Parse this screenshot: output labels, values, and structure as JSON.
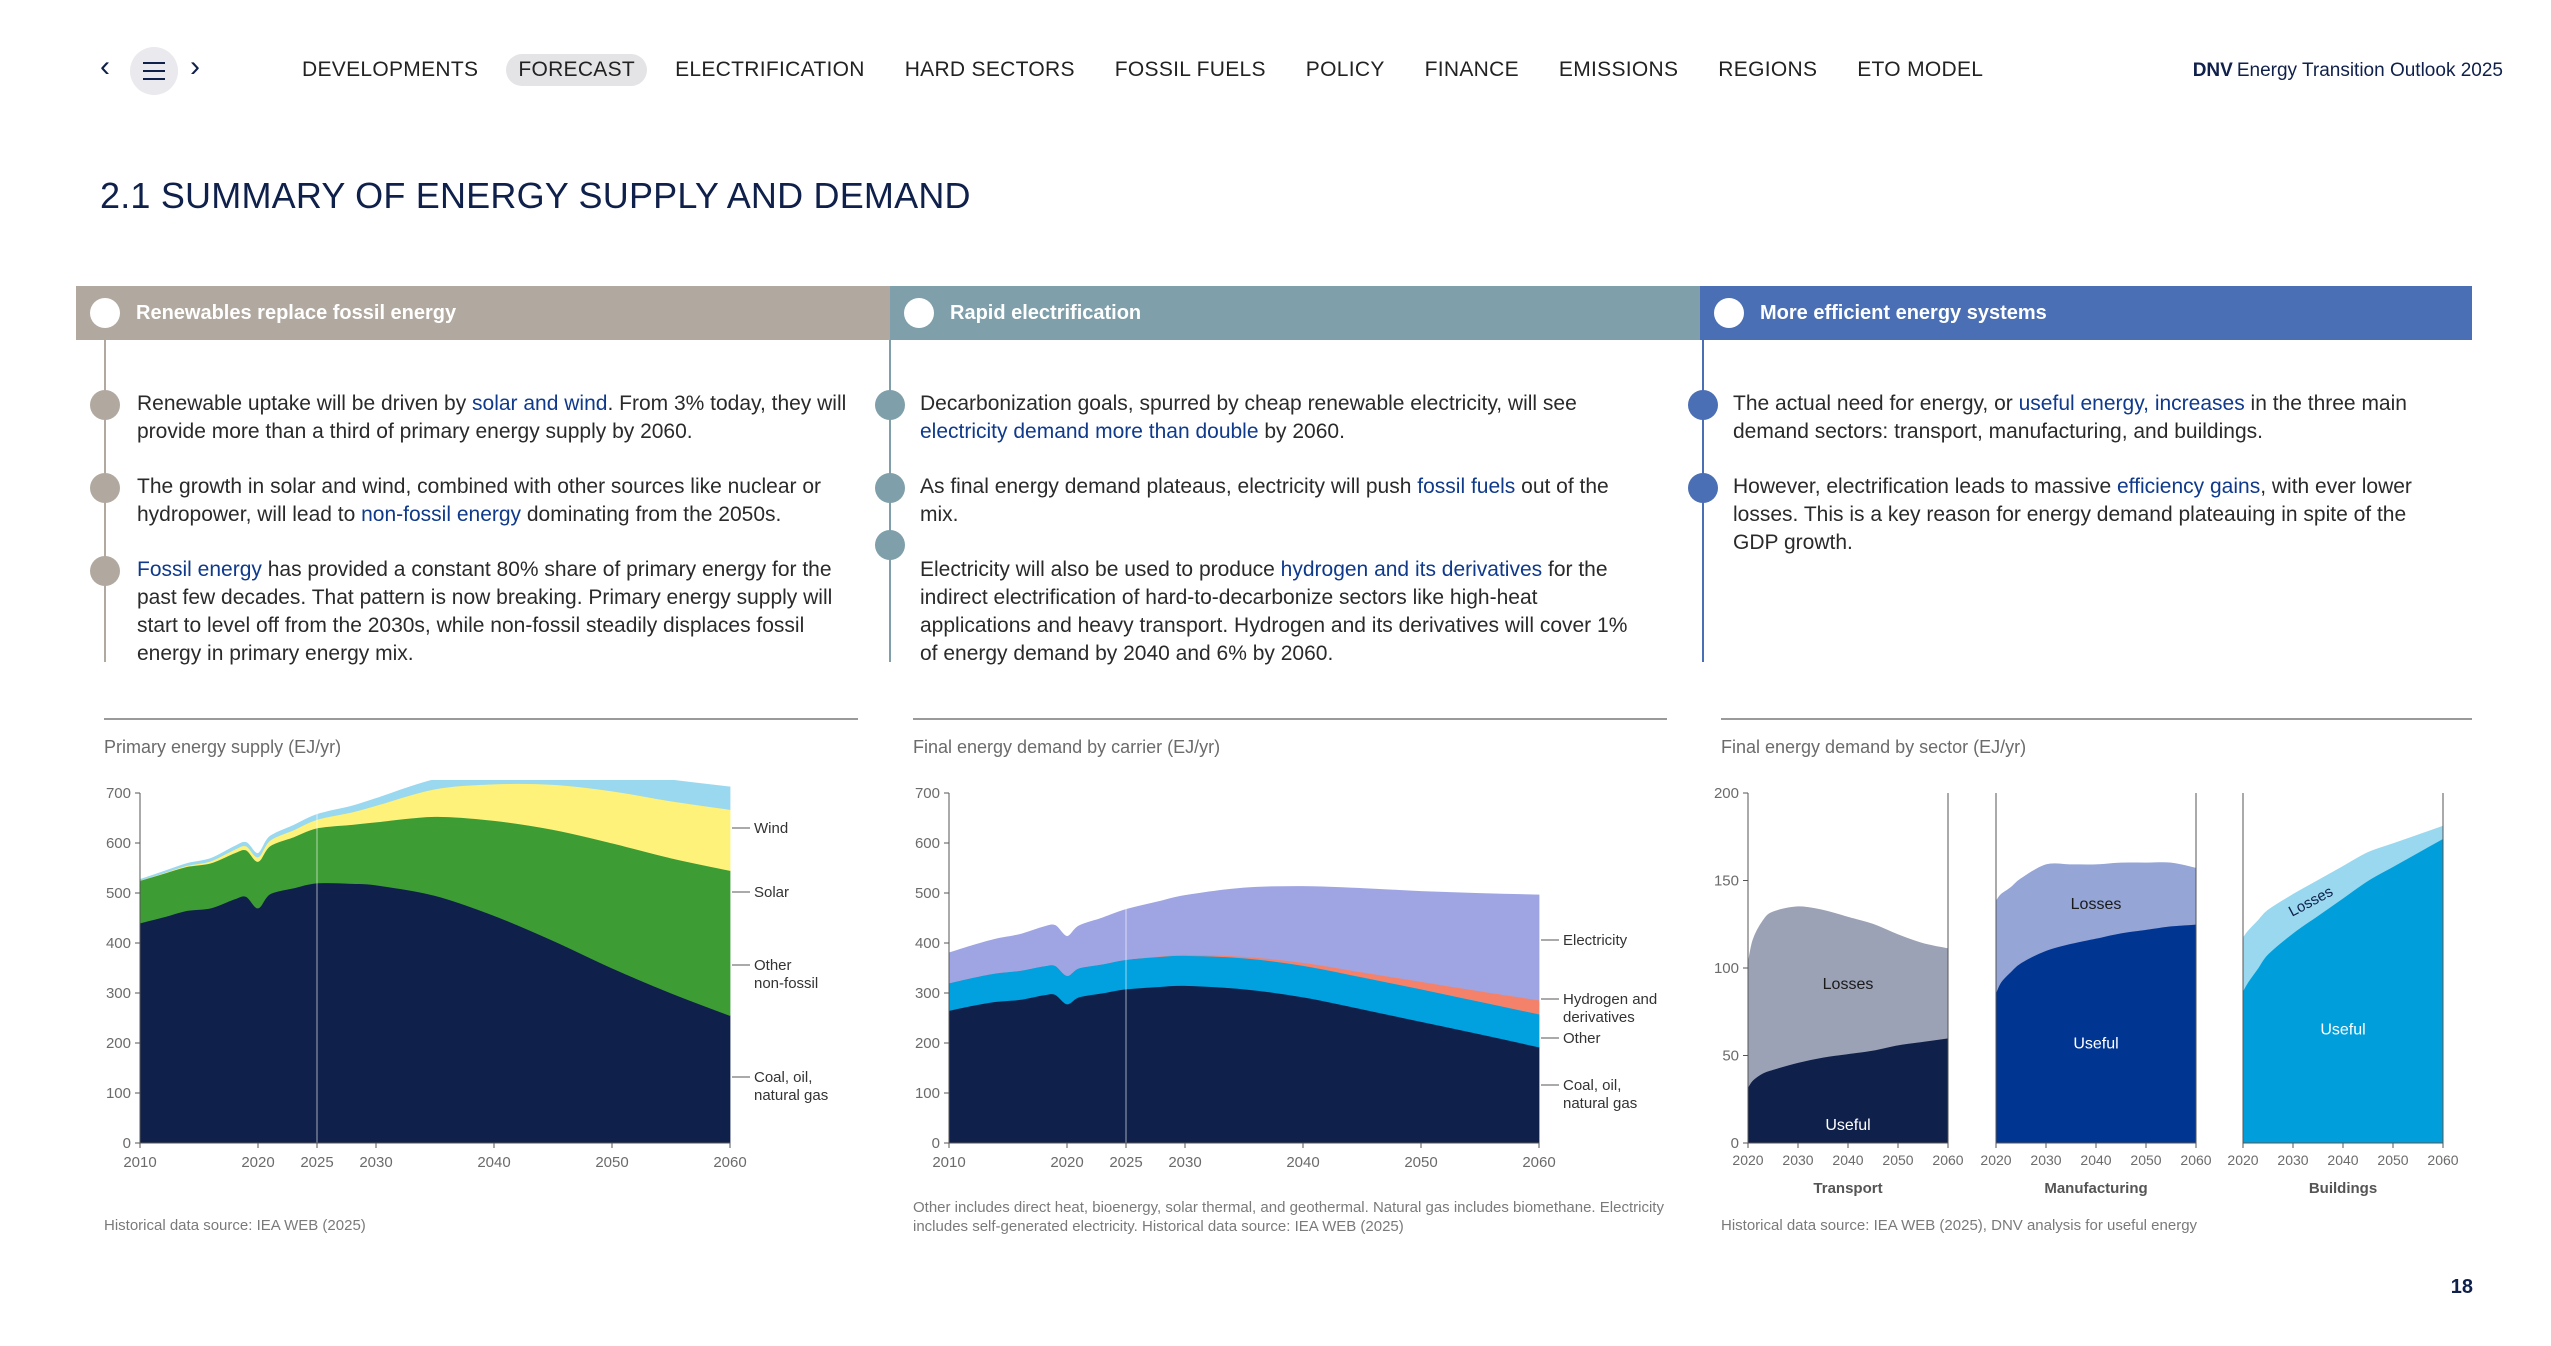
{
  "nav": {
    "prev_icon": "chevron-left-icon",
    "menu_icon": "hamburger-menu-icon",
    "next_icon": "chevron-right-icon",
    "tabs": [
      {
        "label": "DEVELOPMENTS",
        "active": false
      },
      {
        "label": "FORECAST",
        "active": true
      },
      {
        "label": "ELECTRIFICATION",
        "active": false
      },
      {
        "label": "HARD SECTORS",
        "active": false
      },
      {
        "label": "FOSSIL FUELS",
        "active": false
      },
      {
        "label": "POLICY",
        "active": false
      },
      {
        "label": "FINANCE",
        "active": false
      },
      {
        "label": "EMISSIONS",
        "active": false
      },
      {
        "label": "REGIONS",
        "active": false
      },
      {
        "label": "ETO MODEL",
        "active": false
      }
    ],
    "brand_bold": "DNV",
    "brand_text": "Energy Transition Outlook 2025"
  },
  "page_title": "2.1 SUMMARY OF ENERGY SUPPLY AND DEMAND",
  "sections": [
    {
      "heading": "Renewables replace fossil energy",
      "color": "#b1a99f",
      "paragraphs": [
        [
          {
            "t": "Renewable uptake will be driven by "
          },
          {
            "t": "solar and wind",
            "h": true
          },
          {
            "t": ". From 3% today, they will provide more than a third of primary energy supply by 2060."
          }
        ],
        [
          {
            "t": "The growth in solar and wind, combined with other sources like nuclear or hydropower, will lead to "
          },
          {
            "t": "non-fossil energy",
            "h": true
          },
          {
            "t": " dominating from the 2050s."
          }
        ],
        [
          {
            "t": "Fossil energy",
            "h": true
          },
          {
            "t": " has provided a constant 80% share of primary energy for the past few decades. That pattern is now breaking. Primary energy supply will start to level off from the 2030s, while non-fossil steadily displaces fossil energy in primary energy mix."
          }
        ]
      ]
    },
    {
      "heading": "Rapid electrification",
      "color": "#7f9faa",
      "paragraphs": [
        [
          {
            "t": "Decarbonization goals, spurred by cheap renewable electricity, will see "
          },
          {
            "t": "electricity demand more than double",
            "h": true
          },
          {
            "t": " by 2060."
          }
        ],
        [
          {
            "t": "As final energy demand plateaus, electricity will push "
          },
          {
            "t": "fossil fuels",
            "h": true
          },
          {
            "t": " out of the mix."
          }
        ],
        [
          {
            "t": "Electricity will also be used to produce "
          },
          {
            "t": "hydrogen and its derivatives",
            "h": true
          },
          {
            "t": " for the indirect electrification of hard-to-decarbonize sectors like high-heat applications and heavy transport. Hydrogen and its derivatives will cover 1% of energy demand by 2040 and 6% by 2060."
          }
        ]
      ]
    },
    {
      "heading": "More efficient energy systems",
      "color": "#4a6fb5",
      "paragraphs": [
        [
          {
            "t": "The actual need for energy, or "
          },
          {
            "t": "useful energy, increases",
            "h": true
          },
          {
            "t": " in the three main demand sectors: transport, manufacturing, and buildings."
          }
        ],
        [
          {
            "t": "However, electrification leads to massive "
          },
          {
            "t": "efficiency gains",
            "h": true
          },
          {
            "t": ", with ever lower losses. This is a key reason for energy demand plateauing in spite of the GDP growth."
          }
        ]
      ]
    }
  ],
  "chart_titles": {
    "c1": "Primary energy supply (EJ/yr)",
    "c2": "Final energy demand by carrier (EJ/yr)",
    "c3": "Final energy demand by sector (EJ/yr)"
  },
  "sources": {
    "c1": "Historical data source: IEA WEB (2025)",
    "c2": "Other includes direct heat, bioenergy, solar thermal, and geothermal. Natural gas includes biomethane. Electricity includes self-generated electricity. Historical data source: IEA WEB (2025)",
    "c3": "Historical data source: IEA WEB (2025), DNV analysis for useful energy"
  },
  "page_number": "18",
  "chart_data": [
    {
      "type": "area",
      "title": "Primary energy supply (EJ/yr)",
      "stacked": true,
      "x": [
        2010,
        2012,
        2014,
        2016,
        2018,
        2019,
        2020,
        2021,
        2023,
        2025,
        2028,
        2030,
        2035,
        2040,
        2045,
        2050,
        2055,
        2060
      ],
      "xticks": [
        2010,
        2020,
        2025,
        2030,
        2040,
        2050,
        2060
      ],
      "ylim": [
        0,
        700
      ],
      "yticks": [
        0,
        100,
        200,
        300,
        400,
        500,
        600,
        700
      ],
      "marker_year": 2025,
      "series": [
        {
          "name": "Coal, oil, natural gas",
          "color": "#0f204b",
          "values": [
            440,
            452,
            465,
            470,
            488,
            493,
            470,
            498,
            510,
            520,
            519,
            516,
            495,
            455,
            405,
            350,
            300,
            255
          ]
        },
        {
          "name": "Other non-fossil",
          "color": "#3e9c35",
          "values": [
            85,
            87,
            88,
            90,
            92,
            93,
            93,
            96,
            102,
            110,
            118,
            126,
            158,
            190,
            222,
            250,
            270,
            290
          ]
        },
        {
          "name": "Solar",
          "color": "#fff27a",
          "values": [
            0,
            1,
            2,
            4,
            7,
            8,
            9,
            11,
            14,
            17,
            25,
            33,
            55,
            73,
            90,
            104,
            114,
            122
          ]
        },
        {
          "name": "Wind",
          "color": "#9ad8ef",
          "values": [
            2,
            3,
            4,
            5,
            6,
            7,
            7,
            8,
            9,
            10,
            12,
            14,
            19,
            26,
            32,
            38,
            42,
            45
          ]
        }
      ],
      "legend": [
        "Wind",
        "Solar",
        "Other non-fossil",
        "Coal, oil, natural gas"
      ]
    },
    {
      "type": "area",
      "title": "Final energy demand by carrier (EJ/yr)",
      "stacked": true,
      "x": [
        2010,
        2012,
        2014,
        2016,
        2018,
        2019,
        2020,
        2021,
        2023,
        2025,
        2028,
        2030,
        2035,
        2040,
        2045,
        2050,
        2055,
        2060
      ],
      "xticks": [
        2010,
        2020,
        2025,
        2030,
        2040,
        2050,
        2060
      ],
      "ylim": [
        0,
        700
      ],
      "yticks": [
        0,
        100,
        200,
        300,
        400,
        500,
        600,
        700
      ],
      "marker_year": 2025,
      "series": [
        {
          "name": "Coal, oil, natural gas",
          "color": "#0f204b",
          "values": [
            265,
            275,
            283,
            287,
            296,
            297,
            278,
            292,
            300,
            308,
            313,
            315,
            308,
            292,
            268,
            243,
            218,
            192
          ]
        },
        {
          "name": "Other",
          "color": "#00a1de",
          "values": [
            55,
            56,
            57,
            58,
            58,
            58,
            57,
            58,
            58,
            59,
            60,
            60,
            62,
            63,
            64,
            65,
            65,
            66
          ]
        },
        {
          "name": "Hydrogen and derivatives",
          "color": "#f4826b",
          "values": [
            0,
            0,
            0,
            0,
            0,
            0,
            0,
            0,
            0,
            0,
            1,
            2,
            3,
            6,
            10,
            15,
            21,
            28
          ]
        },
        {
          "name": "Electricity",
          "color": "#9fa5e3",
          "values": [
            60,
            64,
            68,
            72,
            78,
            80,
            78,
            84,
            92,
            100,
            110,
            118,
            137,
            152,
            167,
            180,
            195,
            210
          ]
        }
      ],
      "legend": [
        "Electricity",
        "Hydrogen and derivatives",
        "Other",
        "Coal, oil, natural gas"
      ]
    },
    {
      "type": "area",
      "title": "Final energy demand by sector (EJ/yr)",
      "stacked": true,
      "ylim": [
        0,
        200
      ],
      "yticks": [
        0,
        50,
        100,
        150,
        200
      ],
      "panels": [
        {
          "name": "Transport",
          "x": [
            2020,
            2021,
            2023,
            2025,
            2030,
            2035,
            2040,
            2045,
            2050,
            2055,
            2060
          ],
          "xticks": [
            2020,
            2030,
            2040,
            2050,
            2060
          ],
          "series": [
            {
              "name": "Useful",
              "color": "#0f204b",
              "values": [
                32,
                36,
                40,
                42,
                46,
                49,
                51,
                53,
                56,
                58,
                60
              ]
            },
            {
              "name": "Losses",
              "color": "#9ca2b5",
              "values": [
                70,
                80,
                87,
                90,
                89,
                84,
                78,
                72,
                63,
                56,
                51
              ]
            }
          ]
        },
        {
          "name": "Manufacturing",
          "x": [
            2020,
            2021,
            2023,
            2025,
            2030,
            2035,
            2040,
            2045,
            2050,
            2055,
            2060
          ],
          "xticks": [
            2020,
            2030,
            2040,
            2050,
            2060
          ],
          "series": [
            {
              "name": "Useful",
              "color": "#003591",
              "values": [
                86,
                92,
                98,
                103,
                110,
                114,
                117,
                120,
                122,
                124,
                125
              ]
            },
            {
              "name": "Losses",
              "color": "#94a5d6",
              "values": [
                52,
                50,
                48,
                48,
                49,
                45,
                42,
                40,
                38,
                36,
                32
              ]
            }
          ]
        },
        {
          "name": "Buildings",
          "x": [
            2020,
            2021,
            2023,
            2025,
            2030,
            2035,
            2040,
            2045,
            2050,
            2055,
            2060
          ],
          "xticks": [
            2020,
            2030,
            2040,
            2050,
            2060
          ],
          "series": [
            {
              "name": "Useful",
              "color": "#009fdb",
              "values": [
                87,
                92,
                100,
                108,
                120,
                130,
                140,
                150,
                158,
                166,
                174
              ]
            },
            {
              "name": "Losses",
              "color": "#9ad8ef",
              "values": [
                30,
                29,
                27,
                25,
                22,
                20,
                18,
                16,
                13,
                10,
                7
              ]
            }
          ]
        }
      ],
      "panel_labels": {
        "useful": "Useful",
        "losses": "Losses"
      }
    }
  ]
}
